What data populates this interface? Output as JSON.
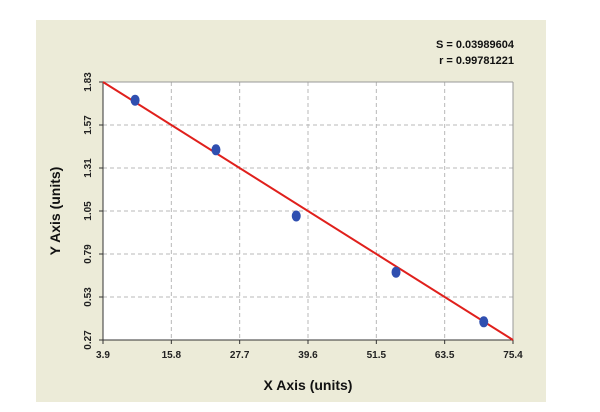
{
  "chart_data": {
    "type": "scatter",
    "title": "",
    "xlabel": "X Axis (units)",
    "ylabel": "Y Axis (units)",
    "xlim": [
      3.9,
      75.4
    ],
    "ylim": [
      0.27,
      1.83
    ],
    "x_ticks": [
      "3.9",
      "15.8",
      "27.7",
      "39.6",
      "51.5",
      "63.5",
      "75.4"
    ],
    "y_ticks": [
      "1.83",
      "1.57",
      "1.31",
      "1.05",
      "0.79",
      "0.53",
      "0.27"
    ],
    "grid": true,
    "legend": "none",
    "annotations": {
      "s_label": "S = 0.03989604",
      "r_label": "r = 0.99781221"
    },
    "series": [
      {
        "points": [
          {
            "x": 9.5,
            "y": 1.72
          },
          {
            "x": 23.6,
            "y": 1.42
          },
          {
            "x": 37.6,
            "y": 1.02
          },
          {
            "x": 55.0,
            "y": 0.68
          },
          {
            "x": 70.3,
            "y": 0.38
          }
        ]
      }
    ],
    "fit_line": {
      "x": [
        3.9,
        75.4
      ],
      "y": [
        1.83,
        0.27
      ]
    },
    "colors": {
      "frame_bg": "#ecebd8",
      "plot_bg": "#ffffff",
      "grid": "#b8b8b8",
      "line": "#e0201c",
      "point": "#2f4fb0"
    }
  }
}
